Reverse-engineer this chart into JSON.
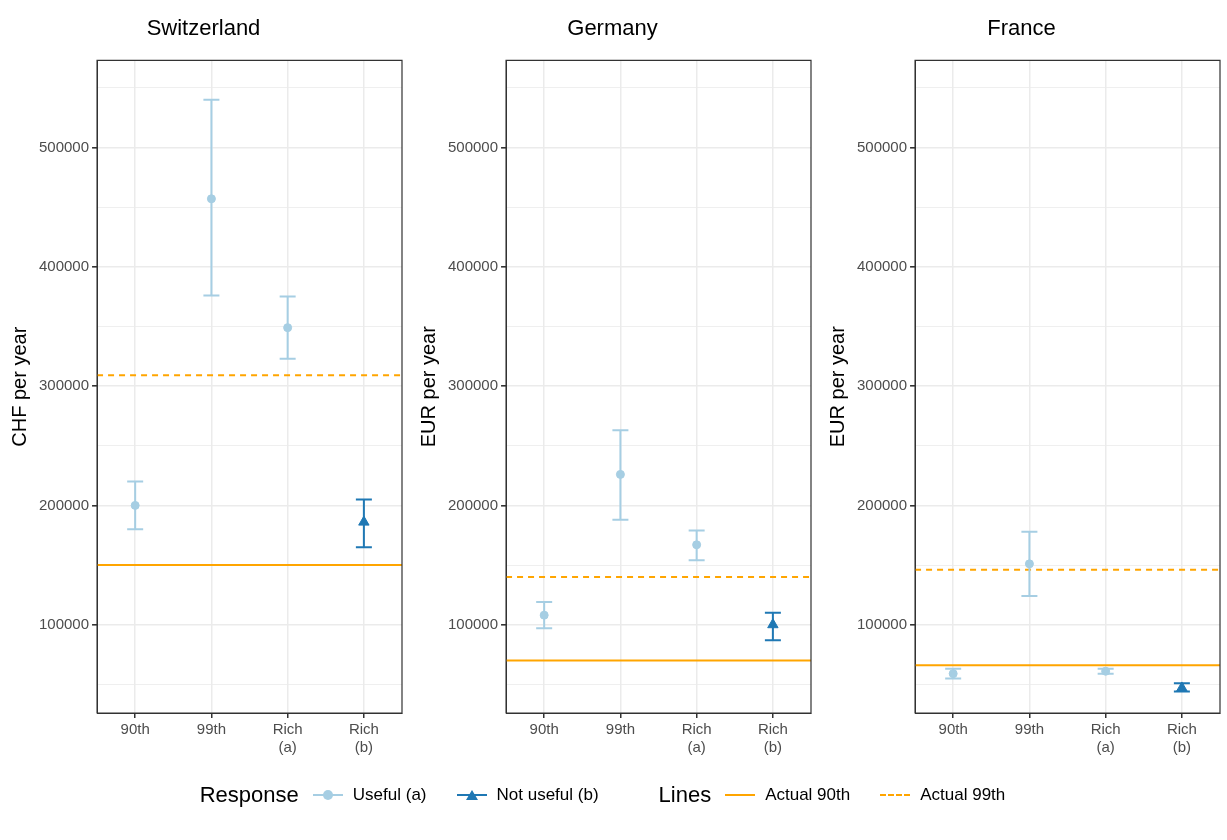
{
  "chart_data": [
    {
      "type": "scatter",
      "title": "Switzerland",
      "ylabel": "CHF per year",
      "categories": [
        "90th",
        "99th",
        "Rich (a)",
        "Rich (b)"
      ],
      "series": [
        {
          "name": "Useful (a)",
          "color": "#a6cee3",
          "marker": "circle",
          "values": [
            200000,
            457000,
            349000,
            null
          ],
          "errors": [
            [
              180000,
              220000
            ],
            [
              376000,
              540000
            ],
            [
              323000,
              375000
            ],
            null
          ]
        },
        {
          "name": "Not useful (b)",
          "color": "#1f78b4",
          "marker": "triangle",
          "values": [
            null,
            null,
            null,
            186000
          ],
          "errors": [
            null,
            null,
            null,
            [
              165000,
              205000
            ]
          ]
        }
      ],
      "ref_lines": [
        {
          "axis": "y",
          "value": 150000,
          "label": "Actual 90th",
          "color": "#ffa500",
          "line_style": "solid"
        },
        {
          "axis": "y",
          "value": 309000,
          "label": "Actual 99th",
          "color": "#ffa500",
          "line_style": "dashed"
        }
      ],
      "ylim": [
        26000,
        573000
      ],
      "yticks": [
        {
          "value": 50000,
          "label": null
        },
        100000,
        {
          "value": 150000,
          "label": null
        },
        200000,
        {
          "value": 250000,
          "label": null
        },
        300000,
        {
          "value": 350000,
          "label": null
        },
        400000,
        {
          "value": 450000,
          "label": null
        },
        500000,
        {
          "value": 550000,
          "label": null
        }
      ],
      "grid": true,
      "legend": "bottom",
      "legend_title": "Response",
      "annotations": [
        "Lines"
      ]
    },
    {
      "type": "scatter",
      "title": "Germany",
      "ylabel": "EUR per year",
      "categories": [
        "90th",
        "99th",
        "Rich (a)",
        "Rich (b)"
      ],
      "series": [
        {
          "color": "#a6cee3",
          "marker": "circle",
          "values": [
            108000,
            226000,
            167000,
            null
          ],
          "errors": [
            [
              97000,
              119000
            ],
            [
              188000,
              263000
            ],
            [
              154000,
              179000
            ],
            null
          ]
        },
        {
          "color": "#1f78b4",
          "marker": "triangle",
          "values": [
            null,
            null,
            null,
            100000
          ],
          "errors": [
            null,
            null,
            null,
            [
              87000,
              110000
            ]
          ]
        }
      ],
      "ref_lines": [
        {
          "axis": "y",
          "value": 70000,
          "color": "#ffa500",
          "line_style": "solid"
        },
        {
          "axis": "y",
          "value": 140000,
          "color": "#ffa500",
          "line_style": "dashed"
        }
      ],
      "ylim": [
        26000,
        573000
      ],
      "yticks": [
        {
          "value": 50000,
          "label": null
        },
        100000,
        {
          "value": 150000,
          "label": null
        },
        200000,
        {
          "value": 250000,
          "label": null
        },
        300000,
        {
          "value": 350000,
          "label": null
        },
        400000,
        {
          "value": 450000,
          "label": null
        },
        500000,
        {
          "value": 550000,
          "label": null
        }
      ],
      "grid": true
    },
    {
      "type": "scatter",
      "title": "France",
      "ylabel": "EUR per year",
      "categories": [
        "90th",
        "99th",
        "Rich (a)",
        "Rich (b)"
      ],
      "series": [
        {
          "color": "#a6cee3",
          "marker": "circle",
          "values": [
            59000,
            151000,
            61000,
            null
          ],
          "errors": [
            [
              55000,
              63000
            ],
            [
              124000,
              178000
            ],
            [
              59000,
              63000
            ],
            null
          ]
        },
        {
          "color": "#1f78b4",
          "marker": "triangle",
          "values": [
            null,
            null,
            null,
            47000
          ],
          "errors": [
            null,
            null,
            null,
            [
              44000,
              51000
            ]
          ]
        }
      ],
      "ref_lines": [
        {
          "axis": "y",
          "value": 66000,
          "color": "#ffa500",
          "line_style": "solid"
        },
        {
          "axis": "y",
          "value": 146000,
          "color": "#ffa500",
          "line_style": "dashed"
        }
      ],
      "ylim": [
        26000,
        573000
      ],
      "yticks": [
        {
          "value": 50000,
          "label": null
        },
        100000,
        {
          "value": 150000,
          "label": null
        },
        200000,
        {
          "value": 250000,
          "label": null
        },
        300000,
        {
          "value": 350000,
          "label": null
        },
        400000,
        {
          "value": 450000,
          "label": null
        },
        500000,
        {
          "value": 550000,
          "label": null
        }
      ],
      "grid": true
    }
  ]
}
